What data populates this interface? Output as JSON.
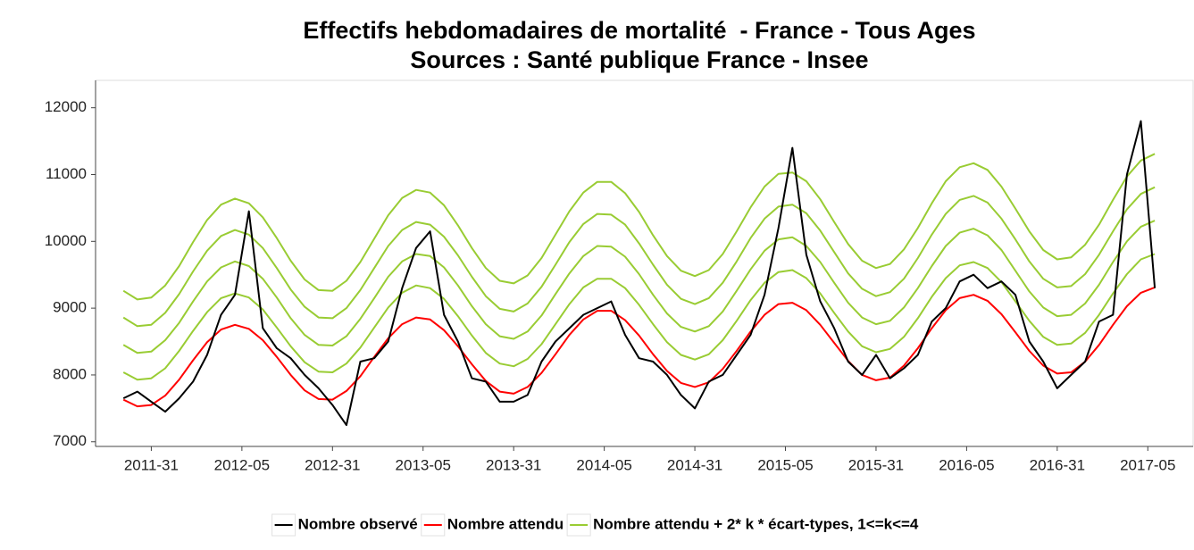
{
  "chart_data": {
    "type": "line",
    "title": "Effectifs hebdomadaires de mortalité  - France - Tous Ages",
    "subtitle": "Sources : Santé publique France - Insee",
    "x": [
      0,
      4,
      8,
      12,
      16,
      20,
      24,
      28,
      32,
      36,
      40,
      44,
      48,
      52,
      56,
      60,
      64,
      68,
      72,
      76,
      80,
      84,
      88,
      92,
      96,
      100,
      104,
      108,
      112,
      116,
      120,
      124,
      128,
      132,
      136,
      140,
      144,
      148,
      152,
      156,
      160,
      164,
      168,
      172,
      176,
      180,
      184,
      188,
      192,
      196,
      200,
      204,
      208,
      212,
      216,
      220,
      224,
      228,
      232,
      236,
      240,
      244,
      248,
      252,
      256,
      260,
      264,
      268,
      272,
      276,
      280,
      284,
      288,
      292,
      296
    ],
    "xlim": [
      -8,
      307
    ],
    "xticks": [
      {
        "value": 8,
        "label": "2011-31"
      },
      {
        "value": 34,
        "label": "2012-05"
      },
      {
        "value": 60,
        "label": "2012-31"
      },
      {
        "value": 86,
        "label": "2013-05"
      },
      {
        "value": 112,
        "label": "2013-31"
      },
      {
        "value": 138,
        "label": "2014-05"
      },
      {
        "value": 164,
        "label": "2014-31"
      },
      {
        "value": 190,
        "label": "2015-05"
      },
      {
        "value": 216,
        "label": "2015-31"
      },
      {
        "value": 242,
        "label": "2016-05"
      },
      {
        "value": 268,
        "label": "2016-31"
      },
      {
        "value": 294,
        "label": "2017-05"
      }
    ],
    "ylim": [
      6930,
      12410
    ],
    "yticks": [
      7000,
      8000,
      9000,
      10000,
      11000,
      12000
    ],
    "legend": "bottom",
    "series": [
      {
        "name": "Nombre observé",
        "color": "#000000",
        "values": [
          7650,
          7750,
          7600,
          7450,
          7650,
          7900,
          8300,
          8900,
          9200,
          10450,
          8700,
          8400,
          8250,
          8000,
          7800,
          7550,
          7250,
          8200,
          8250,
          8500,
          9300,
          9900,
          10150,
          8900,
          8500,
          7950,
          7900,
          7600,
          7600,
          7700,
          8200,
          8500,
          8700,
          8900,
          9000,
          9100,
          8600,
          8250,
          8200,
          8000,
          7700,
          7500,
          7900,
          8000,
          8300,
          8600,
          9200,
          10200,
          11400,
          9800,
          9100,
          8700,
          8200,
          8000,
          8300,
          7950,
          8100,
          8300,
          8800,
          9000,
          9400,
          9500,
          9300,
          9400,
          9200,
          8500,
          8200,
          7800,
          8000,
          8200,
          8800,
          8900,
          11000,
          11800,
          9300
        ]
      },
      {
        "name": "Nombre attendu",
        "color": "#ff0000",
        "values": [
          7630,
          7530,
          7550,
          7690,
          7930,
          8220,
          8490,
          8680,
          8750,
          8690,
          8520,
          8270,
          8000,
          7770,
          7640,
          7630,
          7760,
          7980,
          8270,
          8550,
          8760,
          8860,
          8830,
          8670,
          8430,
          8160,
          7910,
          7750,
          7720,
          7820,
          8030,
          8310,
          8600,
          8830,
          8960,
          8960,
          8820,
          8590,
          8310,
          8060,
          7880,
          7820,
          7890,
          8090,
          8360,
          8650,
          8900,
          9060,
          9080,
          8970,
          8750,
          8480,
          8210,
          8000,
          7920,
          7960,
          8140,
          8400,
          8700,
          8970,
          9150,
          9200,
          9110,
          8910,
          8640,
          8360,
          8140,
          8020,
          8040,
          8200,
          8450,
          8750,
          9030,
          9230,
          9310
        ]
      },
      {
        "name": "Nombre attendu + 2* k * écart-types, 1<=k<=4",
        "color": "#99cc33",
        "values": [
          8040,
          7930,
          7950,
          8100,
          8360,
          8660,
          8940,
          9150,
          9220,
          9160,
          8980,
          8710,
          8430,
          8190,
          8050,
          8040,
          8170,
          8410,
          8710,
          9010,
          9230,
          9340,
          9300,
          9140,
          8880,
          8590,
          8330,
          8170,
          8130,
          8240,
          8460,
          8760,
          9060,
          9310,
          9440,
          9440,
          9300,
          9050,
          8760,
          8490,
          8300,
          8230,
          8310,
          8520,
          8810,
          9120,
          9380,
          9540,
          9570,
          9450,
          9220,
          8930,
          8650,
          8430,
          8340,
          8390,
          8570,
          8850,
          9170,
          9450,
          9640,
          9690,
          9600,
          9390,
          9100,
          8810,
          8570,
          8450,
          8470,
          8630,
          8900,
          9220,
          9510,
          9730,
          9810
        ]
      },
      {
        "color": "#99cc33",
        "values": [
          8450,
          8330,
          8350,
          8520,
          8780,
          9100,
          9400,
          9610,
          9700,
          9630,
          9440,
          9160,
          8850,
          8600,
          8450,
          8440,
          8580,
          8840,
          9150,
          9470,
          9700,
          9810,
          9780,
          9610,
          9340,
          9030,
          8760,
          8580,
          8540,
          8650,
          8890,
          9210,
          9520,
          9780,
          9930,
          9920,
          9770,
          9510,
          9200,
          8920,
          8720,
          8650,
          8730,
          8950,
          9260,
          9580,
          9860,
          10030,
          10060,
          9930,
          9690,
          9380,
          9080,
          8860,
          8760,
          8810,
          9010,
          9300,
          9630,
          9930,
          10130,
          10190,
          10090,
          9870,
          9560,
          9250,
          9010,
          8880,
          8900,
          9070,
          9350,
          9690,
          10000,
          10220,
          10310
        ]
      },
      {
        "color": "#99cc33",
        "values": [
          8860,
          8730,
          8750,
          8930,
          9210,
          9550,
          9860,
          10080,
          10170,
          10100,
          9900,
          9600,
          9280,
          9020,
          8860,
          8850,
          9000,
          9270,
          9600,
          9930,
          10170,
          10290,
          10250,
          10070,
          9790,
          9470,
          9180,
          8990,
          8950,
          9070,
          9320,
          9650,
          9990,
          10260,
          10410,
          10400,
          10250,
          9970,
          9650,
          9350,
          9140,
          9060,
          9150,
          9380,
          9700,
          10050,
          10340,
          10520,
          10550,
          10420,
          10160,
          9840,
          9520,
          9290,
          9180,
          9240,
          9440,
          9750,
          10100,
          10410,
          10620,
          10680,
          10580,
          10340,
          10030,
          9700,
          9440,
          9310,
          9330,
          9510,
          9800,
          10150,
          10480,
          10710,
          10810
        ]
      },
      {
        "color": "#99cc33",
        "values": [
          9260,
          9130,
          9160,
          9340,
          9630,
          9990,
          10320,
          10550,
          10640,
          10570,
          10360,
          10050,
          9710,
          9430,
          9270,
          9260,
          9410,
          9690,
          10040,
          10390,
          10650,
          10770,
          10730,
          10540,
          10240,
          9900,
          9600,
          9410,
          9370,
          9490,
          9750,
          10100,
          10450,
          10730,
          10890,
          10890,
          10720,
          10440,
          10090,
          9780,
          9560,
          9480,
          9570,
          9810,
          10150,
          10510,
          10820,
          11010,
          11030,
          10900,
          10630,
          10290,
          9960,
          9710,
          9600,
          9660,
          9880,
          10200,
          10570,
          10900,
          11110,
          11170,
          11070,
          10820,
          10490,
          10150,
          9870,
          9730,
          9760,
          9950,
          10250,
          10620,
          10970,
          11210,
          11310
        ]
      }
    ]
  }
}
